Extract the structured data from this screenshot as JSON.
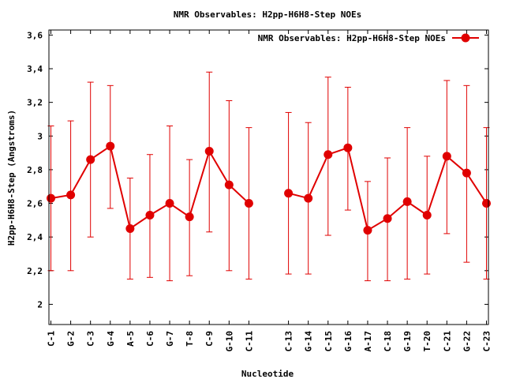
{
  "chart_data": {
    "type": "line",
    "title": "NMR Observables: H2pp-H6H8-Step NOEs",
    "xlabel": "Nucleotide",
    "ylabel": "H2pp-H6H8-Step (Angstroms)",
    "ylim": [
      1.88,
      3.63
    ],
    "yticks": [
      "2",
      "2,2",
      "2,4",
      "2,6",
      "2,8",
      "3",
      "3,2",
      "3,4",
      "3,6"
    ],
    "ytick_values": [
      2.0,
      2.2,
      2.4,
      2.6,
      2.8,
      3.0,
      3.2,
      3.4,
      3.6
    ],
    "grid": false,
    "legend_position": "top-right",
    "color": "#e00000",
    "categories": [
      "C-1",
      "G-2",
      "C-3",
      "G-4",
      "A-5",
      "C-6",
      "G-7",
      "T-8",
      "C-9",
      "G-10",
      "C-11",
      "C-13",
      "G-14",
      "C-15",
      "G-16",
      "A-17",
      "C-18",
      "G-19",
      "T-20",
      "C-21",
      "G-22",
      "C-23"
    ],
    "x": [
      1,
      2,
      3,
      4,
      5,
      6,
      7,
      8,
      9,
      10,
      11,
      13,
      14,
      15,
      16,
      17,
      18,
      19,
      20,
      21,
      22,
      23
    ],
    "series": [
      {
        "name": "NMR Observables: H2pp-H6H8-Step NOEs",
        "values": [
          2.63,
          2.65,
          2.86,
          2.94,
          2.45,
          2.53,
          2.6,
          2.52,
          2.91,
          2.71,
          2.6,
          2.66,
          2.63,
          2.89,
          2.93,
          2.44,
          2.51,
          2.61,
          2.53,
          2.88,
          2.78,
          2.6
        ],
        "err_low": [
          2.2,
          2.2,
          2.4,
          2.57,
          2.15,
          2.16,
          2.14,
          2.17,
          2.43,
          2.2,
          2.15,
          2.18,
          2.18,
          2.41,
          2.56,
          2.14,
          2.14,
          2.15,
          2.18,
          2.42,
          2.25,
          2.15
        ],
        "err_high": [
          3.06,
          3.09,
          3.32,
          3.3,
          2.75,
          2.89,
          3.06,
          2.86,
          3.38,
          3.21,
          3.05,
          3.14,
          3.08,
          3.35,
          3.29,
          2.73,
          2.87,
          3.05,
          2.88,
          3.33,
          3.3,
          3.05
        ]
      }
    ]
  }
}
